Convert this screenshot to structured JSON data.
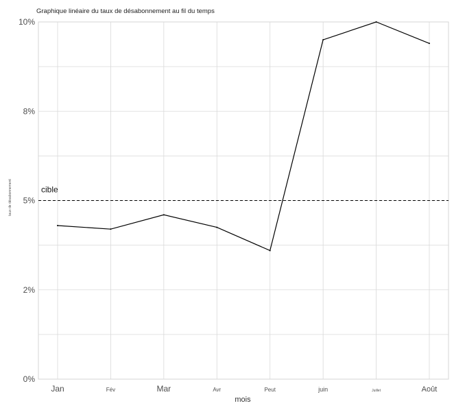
{
  "chart_data": {
    "type": "line",
    "title": "Graphique linéaire du taux de désabonnement au fil du temps",
    "xlabel": "mois",
    "ylabel": "taux de désabonnement",
    "categories": [
      "Jan",
      "Fév",
      "Mar",
      "Avr",
      "Peut",
      "juin",
      "Juillet",
      "Août"
    ],
    "series": [
      {
        "values": [
          4.3,
          4.2,
          4.6,
          4.25,
          3.6,
          9.5,
          10.0,
          9.4
        ]
      }
    ],
    "ylim": [
      0,
      10
    ],
    "y_ticks": [
      0,
      2.5,
      5,
      7.5,
      10
    ],
    "y_tick_labels": [
      "0%",
      "2%",
      "5%",
      "8%",
      "10%"
    ],
    "reference_line": {
      "value": 5,
      "label": "cible",
      "style": "dashed"
    },
    "grid": true,
    "legend": "none"
  },
  "colors": {
    "line": "#000000",
    "grid": "#d9d9d9",
    "background": "#ffffff"
  }
}
